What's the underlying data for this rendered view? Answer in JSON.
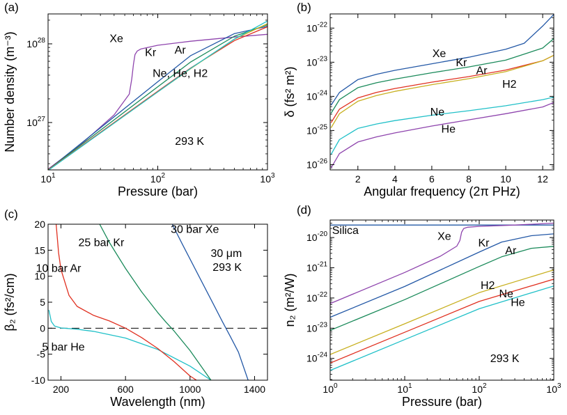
{
  "chart_data": [
    {
      "panel": "(a)",
      "type": "line",
      "xlabel": "Pressure (bar)",
      "ylabel": "Number density (m⁻³)",
      "xscale": "log",
      "yscale": "log",
      "xlim": [
        10,
        1000
      ],
      "ylim": [
        2.5e+26,
        2.4e+28
      ],
      "xticks": [
        {
          "v": 10,
          "m": "10",
          "e": "1"
        },
        {
          "v": 100,
          "m": "10",
          "e": "2"
        },
        {
          "v": 1000,
          "m": "10",
          "e": "3"
        }
      ],
      "yticks": [
        {
          "v": 1e+27,
          "m": "10",
          "e": "27"
        },
        {
          "v": 1e+28,
          "m": "10",
          "e": "28"
        }
      ],
      "annotations": [
        {
          "text": "Xe",
          "x": 42,
          "y": 1.05e+28
        },
        {
          "text": "Kr",
          "x": 86,
          "y": 7e+27
        },
        {
          "text": "Ar",
          "x": 160,
          "y": 7.5e+27
        },
        {
          "text": "Ne, He, H2",
          "x": 160,
          "y": 3.8e+27
        },
        {
          "text": "293 K",
          "x": 195,
          "y": 5.2e+26
        }
      ],
      "series": [
        {
          "color": "#8e44ad",
          "x": [
            10,
            20,
            40,
            55,
            58,
            60,
            62,
            65,
            70,
            100,
            200,
            500,
            1000
          ],
          "y": [
            2.55e+26,
            5.3e+26,
            1.25e+27,
            2.3e+27,
            3.6e+27,
            5.5e+27,
            7.3e+27,
            8.1e+27,
            8.6e+27,
            9.6e+27,
            1.08e+28,
            1.22e+28,
            1.32e+28
          ]
        },
        {
          "color": "#2358a6",
          "x": [
            10,
            100,
            200,
            500,
            1000
          ],
          "y": [
            2.5e+26,
            3.3e+27,
            7.1e+27,
            1.35e+28,
            1.67e+28
          ]
        },
        {
          "color": "#1a8a5a",
          "x": [
            10,
            100,
            200,
            500,
            1000
          ],
          "y": [
            2.5e+26,
            2.85e+27,
            5.9e+27,
            1.25e+28,
            1.75e+28
          ]
        },
        {
          "color": "#e03020",
          "x": [
            10,
            100,
            200,
            500,
            1000
          ],
          "y": [
            2.5e+26,
            2.5e+27,
            4.95e+27,
            1.1e+28,
            1.65e+28
          ]
        },
        {
          "color": "#c8b020",
          "x": [
            10,
            100,
            200,
            500,
            1000
          ],
          "y": [
            2.47e+26,
            2.45e+27,
            4.85e+27,
            1.15e+28,
            1.8e+28
          ]
        },
        {
          "color": "#20c0c8",
          "x": [
            10,
            100,
            200,
            500,
            1000
          ],
          "y": [
            2.46e+26,
            2.45e+27,
            4.9e+27,
            1.15e+28,
            1.95e+28
          ]
        }
      ]
    },
    {
      "panel": "(b)",
      "type": "line",
      "xlabel": "Angular frequency (2π PHz)",
      "ylabel": "δ (fs² m²)",
      "xscale": "linear",
      "yscale": "log",
      "xlim": [
        0.5,
        12.6
      ],
      "ylim": [
        7e-27,
        2.6e-22
      ],
      "xticks": [
        {
          "v": 2,
          "t": "2"
        },
        {
          "v": 4,
          "t": "4"
        },
        {
          "v": 6,
          "t": "6"
        },
        {
          "v": 8,
          "t": "8"
        },
        {
          "v": 10,
          "t": "10"
        },
        {
          "v": 12,
          "t": "12"
        }
      ],
      "yticks": [
        {
          "v": 1e-22,
          "m": "10",
          "e": "-22"
        },
        {
          "v": 1e-23,
          "m": "10",
          "e": "-23"
        },
        {
          "v": 1e-24,
          "m": "10",
          "e": "-24"
        },
        {
          "v": 1e-25,
          "m": "10",
          "e": "-25"
        },
        {
          "v": 1e-26,
          "m": "10",
          "e": "-26"
        }
      ],
      "annotations": [
        {
          "text": "Xe",
          "x": 6.4,
          "y": 1.4e-23
        },
        {
          "text": "Kr",
          "x": 7.6,
          "y": 7.6e-24
        },
        {
          "text": "Ar",
          "x": 8.7,
          "y": 4.5e-24
        },
        {
          "text": "H2",
          "x": 10.2,
          "y": 1.8e-24
        },
        {
          "text": "Ne",
          "x": 6.3,
          "y": 2.7e-25
        },
        {
          "text": "He",
          "x": 6.9,
          "y": 8.6e-26
        }
      ],
      "series": [
        {
          "color": "#2358a6",
          "x": [
            0.55,
            1,
            2,
            3,
            4,
            6,
            8,
            10,
            11,
            12,
            12.6
          ],
          "y": [
            5.5e-25,
            1.3e-24,
            3.1e-24,
            4.4e-24,
            5.8e-24,
            9e-24,
            1.4e-23,
            2.4e-23,
            3.6e-23,
            1.15e-22,
            2.5e-22
          ]
        },
        {
          "color": "#1a8a5a",
          "x": [
            0.55,
            1,
            2,
            3,
            4,
            6,
            8,
            10,
            12,
            12.6
          ],
          "y": [
            3.2e-25,
            8e-25,
            1.8e-24,
            2.5e-24,
            3.2e-24,
            4.9e-24,
            7.3e-24,
            1.15e-23,
            2.6e-23,
            4.9e-23
          ]
        },
        {
          "color": "#e03020",
          "x": [
            0.55,
            1,
            2,
            3,
            4,
            6,
            8,
            10,
            12,
            12.6
          ],
          "y": [
            1.7e-25,
            4.2e-25,
            9e-25,
            1.3e-24,
            1.7e-24,
            2.6e-24,
            3.8e-24,
            5.9e-24,
            1.1e-23,
            1.6e-23
          ]
        },
        {
          "color": "#c8b020",
          "x": [
            0.55,
            1,
            2,
            3,
            4,
            6,
            8,
            10,
            12,
            12.6
          ],
          "y": [
            1.2e-25,
            3.1e-25,
            7.2e-25,
            1.05e-24,
            1.4e-24,
            2.2e-24,
            3.3e-24,
            5.3e-24,
            1.1e-23,
            1.6e-23
          ]
        },
        {
          "color": "#20c0c8",
          "x": [
            0.55,
            1,
            2,
            3,
            4,
            6,
            8,
            10,
            12,
            12.6
          ],
          "y": [
            2e-26,
            5.4e-26,
            1.15e-25,
            1.55e-25,
            1.95e-25,
            2.8e-25,
            3.8e-25,
            5.3e-25,
            8e-25,
            9.5e-25
          ]
        },
        {
          "color": "#8e44ad",
          "x": [
            0.55,
            1,
            2,
            3,
            4,
            6,
            8,
            10,
            12,
            12.6
          ],
          "y": [
            8e-27,
            2.1e-26,
            4.6e-26,
            6.5e-26,
            8.5e-26,
            1.35e-25,
            2.05e-25,
            3.1e-25,
            4.9e-25,
            6.6e-25
          ]
        }
      ]
    },
    {
      "panel": "(c)",
      "type": "line",
      "xlabel": "Wavelength (nm)",
      "ylabel": "β₂ (fs²/cm)",
      "xscale": "linear",
      "yscale": "linear",
      "xlim": [
        120,
        1480
      ],
      "ylim": [
        -10,
        20
      ],
      "xticks": [
        {
          "v": 200,
          "t": "200"
        },
        {
          "v": 600,
          "t": "600"
        },
        {
          "v": 1000,
          "t": "1000"
        },
        {
          "v": 1400,
          "t": "1400"
        }
      ],
      "yticks": [
        {
          "v": 20,
          "t": "20"
        },
        {
          "v": 15,
          "t": "15"
        },
        {
          "v": 10,
          "t": "10"
        },
        {
          "v": 5,
          "t": "5"
        },
        {
          "v": 0,
          "t": "0"
        },
        {
          "v": -5,
          "t": "-5"
        },
        {
          "v": -10,
          "t": "-10"
        }
      ],
      "reference_line": 0,
      "annotations": [
        {
          "text": "10 bar Ar",
          "x": 185,
          "y": 10.8
        },
        {
          "text": "25 bar Kr",
          "x": 450,
          "y": 15.8
        },
        {
          "text": "30 bar Xe",
          "x": 1030,
          "y": 18.3
        },
        {
          "text": "30 μm",
          "x": 1225,
          "y": 13.7
        },
        {
          "text": "293 K",
          "x": 1230,
          "y": 11.0
        },
        {
          "text": "5 bar He",
          "x": 215,
          "y": -4.3
        }
      ],
      "series": [
        {
          "color": "#20c0c8",
          "x": [
            125,
            140,
            160,
            200,
            300,
            400,
            600,
            800,
            1000,
            1130
          ],
          "y": [
            3.5,
            1.3,
            0.4,
            0.05,
            -0.2,
            -0.6,
            -1.9,
            -4.1,
            -7.3,
            -10
          ]
        },
        {
          "color": "#e03020",
          "x": [
            170,
            185,
            200,
            250,
            300,
            400,
            500,
            600,
            700,
            800,
            900,
            1000,
            1040
          ],
          "y": [
            20,
            14.5,
            11.3,
            6.3,
            4.2,
            2.5,
            1.4,
            0,
            -1.8,
            -3.9,
            -6.4,
            -9.2,
            -10
          ]
        },
        {
          "color": "#1a8a5a",
          "x": [
            440,
            500,
            600,
            700,
            800,
            850,
            900,
            1000,
            1100,
            1130
          ],
          "y": [
            20,
            16.5,
            11.5,
            7.0,
            3.0,
            1.2,
            -0.5,
            -4.3,
            -8.7,
            -10
          ]
        },
        {
          "color": "#2358a6",
          "x": [
            890,
            950,
            1050,
            1150,
            1200,
            1250,
            1300,
            1360
          ],
          "y": [
            20,
            16.3,
            10.3,
            4.3,
            1.3,
            -1.6,
            -4.6,
            -10
          ]
        }
      ]
    },
    {
      "panel": "(d)",
      "type": "line",
      "xlabel": "Pressure (bar)",
      "ylabel": "n₂ (m²/W)",
      "xscale": "log",
      "yscale": "log",
      "xlim": [
        1,
        1000
      ],
      "ylim": [
        1.9e-25,
        3.8e-20
      ],
      "xticks": [
        {
          "v": 1,
          "m": "10",
          "e": "0"
        },
        {
          "v": 10,
          "m": "10",
          "e": "1"
        },
        {
          "v": 100,
          "m": "10",
          "e": "2"
        },
        {
          "v": 1000,
          "m": "10",
          "e": "3"
        }
      ],
      "yticks": [
        {
          "v": 1e-20,
          "m": "10",
          "e": "-20"
        },
        {
          "v": 1e-21,
          "m": "10",
          "e": "-21"
        },
        {
          "v": 1e-22,
          "m": "10",
          "e": "-22"
        },
        {
          "v": 1e-23,
          "m": "10",
          "e": "-23"
        },
        {
          "v": 1e-24,
          "m": "10",
          "e": "-24"
        }
      ],
      "annotations": [
        {
          "text": "Silica",
          "x": 1.6,
          "y": 1.3e-20
        },
        {
          "text": "Xe",
          "x": 34,
          "y": 8.4e-21
        },
        {
          "text": "Kr",
          "x": 115,
          "y": 5e-21
        },
        {
          "text": "Ar",
          "x": 265,
          "y": 2.8e-21
        },
        {
          "text": "H2",
          "x": 130,
          "y": 2e-22
        },
        {
          "text": "Ne",
          "x": 230,
          "y": 1.05e-22
        },
        {
          "text": "He",
          "x": 330,
          "y": 5.4e-23
        },
        {
          "text": "293 K",
          "x": 220,
          "y": 7.5e-25
        }
      ],
      "series": [
        {
          "color": "#2358a6",
          "x": [
            1,
            1000
          ],
          "y": [
            2.6e-20,
            2.6e-20
          ]
        },
        {
          "color": "#8e44ad",
          "x": [
            1,
            10,
            30,
            50,
            55,
            58,
            62,
            70,
            100,
            300,
            1000
          ],
          "y": [
            6.5e-23,
            7e-22,
            2.4e-21,
            5.2e-21,
            8e-21,
            1.5e-20,
            2e-20,
            2.2e-20,
            2.35e-20,
            2.6e-20,
            3e-20
          ]
        },
        {
          "color": "#2358a6",
          "x": [
            1,
            10,
            100,
            200,
            500,
            1000
          ],
          "y": [
            2.3e-23,
            2.4e-22,
            3.3e-21,
            7.1e-21,
            1.15e-20,
            1.32e-20
          ]
        },
        {
          "color": "#1a8a5a",
          "x": [
            1,
            10,
            100,
            200,
            500,
            1000
          ],
          "y": [
            8.5e-24,
            8.8e-23,
            1.1e-21,
            2.3e-21,
            4.4e-21,
            5.1e-21
          ]
        },
        {
          "color": "#c8b020",
          "x": [
            1,
            10,
            100,
            1000
          ],
          "y": [
            1.35e-24,
            1.4e-23,
            1.5e-22,
            8.5e-22
          ]
        },
        {
          "color": "#e03020",
          "x": [
            1,
            10,
            100,
            1000
          ],
          "y": [
            7e-25,
            7.3e-24,
            7.7e-23,
            4.2e-22
          ]
        },
        {
          "color": "#20c0c8",
          "x": [
            1,
            10,
            100,
            1000
          ],
          "y": [
            4e-25,
            4.2e-24,
            4.4e-23,
            2.5e-22
          ]
        }
      ]
    }
  ]
}
